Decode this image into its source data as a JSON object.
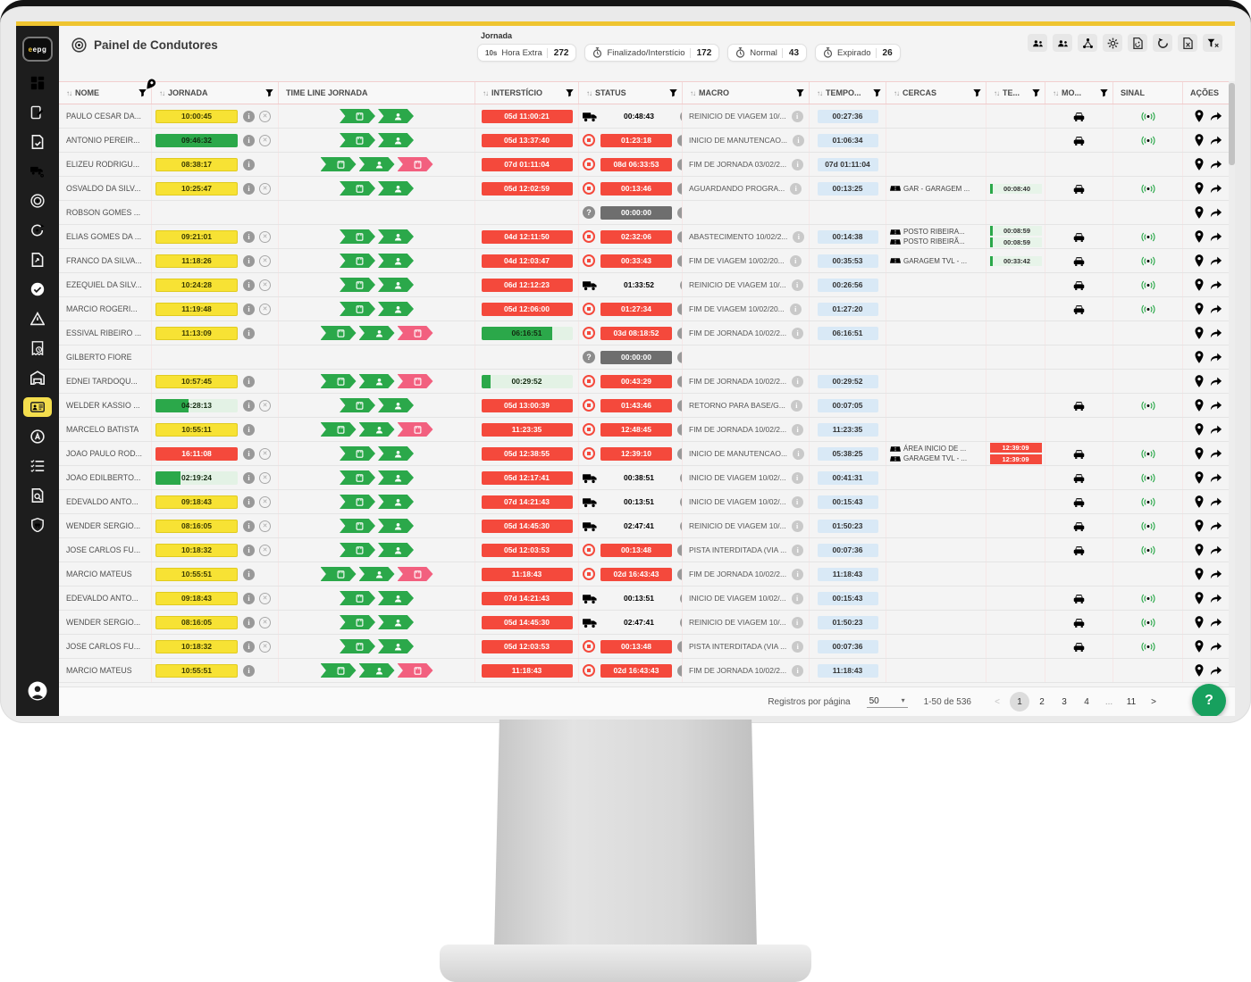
{
  "colors": {
    "accent_yellow": "#efc430",
    "green": "#2ba84a",
    "red": "#f4493c",
    "pink": "#f2607f",
    "light_blue": "#d9e9f6",
    "sidebar": "#1d1d1d",
    "fab_green": "#17a05e"
  },
  "sidebar": {
    "logo": "epg",
    "items": [
      "dashboard",
      "journal-edit",
      "document-check",
      "truck-location",
      "broadcast",
      "sync",
      "file-export",
      "check-circle",
      "alert-triangle",
      "invoice-clock",
      "warehouse",
      "driver-card",
      "autopilot",
      "checklist",
      "document-search",
      "shield-car"
    ],
    "active_item": "driver-card"
  },
  "header": {
    "title": "Painel de Condutores",
    "jornada_label": "Jornada",
    "chips": [
      {
        "icon_label": "10s",
        "label": "Hora Extra",
        "count": "272"
      },
      {
        "icon": "stopwatch",
        "label": "Finalizado/Interstício",
        "count": "172"
      },
      {
        "icon": "stopwatch",
        "label": "Normal",
        "count": "43"
      },
      {
        "icon": "stopwatch",
        "label": "Expirado",
        "count": "26"
      }
    ],
    "toolbar_icons": [
      "add-drivers",
      "drivers-group",
      "integrations",
      "settings",
      "document-sync",
      "refresh",
      "export-excel",
      "clear-filters"
    ]
  },
  "table": {
    "columns": [
      {
        "label": "NOME",
        "sort": true,
        "filter": true
      },
      {
        "label": "JORNADA",
        "sort": true,
        "filter": true
      },
      {
        "label": "TIME LINE JORNADA",
        "sort": false,
        "filter": false
      },
      {
        "label": "INTERSTÍCIO",
        "sort": true,
        "filter": true
      },
      {
        "label": "STATUS",
        "sort": true,
        "filter": true
      },
      {
        "label": "MACRO",
        "sort": true,
        "filter": true
      },
      {
        "label": "TEMPO...",
        "sort": true,
        "filter": true
      },
      {
        "label": "CERCAS",
        "sort": true,
        "filter": true
      },
      {
        "label": "TE...",
        "sort": true,
        "filter": true
      },
      {
        "label": "MO...",
        "sort": true,
        "filter": true
      },
      {
        "label": "SINAL",
        "sort": false,
        "filter": false
      },
      {
        "label": "AÇÕES",
        "sort": false,
        "filter": false
      }
    ],
    "rows": [
      {
        "n": "PAULO CESAR DA...",
        "j": {
          "v": "10:00:45",
          "s": "y"
        },
        "info": true,
        "cancel": true,
        "tl": [
          "trip",
          "driver"
        ],
        "it": {
          "v": "05d 11:00:21",
          "s": "r"
        },
        "st": {
          "ic": "truck",
          "v": "00:48:43",
          "s": "g"
        },
        "mc": "REINICIO DE VIAGEM 10/...",
        "tp": "00:27:36",
        "cc": [],
        "te": [],
        "mo": "g",
        "sg": true,
        "pin": "b"
      },
      {
        "n": "ANTONIO PEREIR...",
        "j": {
          "v": "09:46:32",
          "s": "gp",
          "f": 100
        },
        "info": true,
        "cancel": true,
        "tl": [
          "trip",
          "driver"
        ],
        "it": {
          "v": "05d 13:37:40",
          "s": "r"
        },
        "st": {
          "ic": "stop",
          "v": "01:23:18",
          "s": "r"
        },
        "mc": "INICIO DE MANUTENCAO...",
        "tp": "01:06:34",
        "cc": [],
        "te": [],
        "mo": "r",
        "sg": true,
        "pin": "b"
      },
      {
        "n": "ELIZEU RODRIGU...",
        "j": {
          "v": "08:38:17",
          "s": "y"
        },
        "info": true,
        "cancel": false,
        "tl": [
          "trip",
          "driver",
          "trip-pink"
        ],
        "it": {
          "v": "07d 01:11:04",
          "s": "r"
        },
        "st": {
          "ic": "stop",
          "v": "08d 06:33:53",
          "s": "r"
        },
        "mc": "FIM DE JORNADA 03/02/2...",
        "tp": "07d 01:11:04",
        "cc": [],
        "te": [],
        "mo": null,
        "sg": false,
        "pin": "g"
      },
      {
        "n": "OSVALDO DA SILV...",
        "j": {
          "v": "10:25:47",
          "s": "y"
        },
        "info": true,
        "cancel": true,
        "tl": [
          "trip",
          "driver"
        ],
        "it": {
          "v": "05d 12:02:59",
          "s": "r"
        },
        "st": {
          "ic": "stop",
          "v": "00:13:46",
          "s": "r"
        },
        "mc": "AGUARDANDO PROGRA...",
        "tp": "00:13:25",
        "cc": [
          {
            "t": "GAR - GARAGEM ..."
          }
        ],
        "te": [
          {
            "v": "00:08:40",
            "s": "g"
          }
        ],
        "mo": "r",
        "sg": true,
        "pin": "b"
      },
      {
        "n": "ROBSON GOMES ...",
        "j": null,
        "info": false,
        "cancel": false,
        "tl": [],
        "it": null,
        "st": {
          "ic": "q",
          "v": "00:00:00",
          "s": "d"
        },
        "mc": "",
        "tp": "",
        "cc": [],
        "te": [],
        "mo": null,
        "sg": false,
        "pin": "g"
      },
      {
        "n": "ELIAS GOMES DA ...",
        "j": {
          "v": "09:21:01",
          "s": "y"
        },
        "info": true,
        "cancel": true,
        "tl": [
          "trip",
          "driver"
        ],
        "it": {
          "v": "04d 12:11:50",
          "s": "r"
        },
        "st": {
          "ic": "stop",
          "v": "02:32:06",
          "s": "r"
        },
        "mc": "ABASTECIMENTO 10/02/2...",
        "tp": "00:14:38",
        "cc": [
          {
            "t": "POSTO RIBEIRA..."
          },
          {
            "t": "POSTO RIBEIRÃ..."
          }
        ],
        "te": [
          {
            "v": "00:08:59",
            "s": "g"
          },
          {
            "v": "00:08:59",
            "s": "g"
          }
        ],
        "mo": "r",
        "sg": true,
        "pin": "b"
      },
      {
        "n": "FRANCO DA SILVA...",
        "j": {
          "v": "11:18:26",
          "s": "y"
        },
        "info": true,
        "cancel": true,
        "tl": [
          "trip",
          "driver"
        ],
        "it": {
          "v": "04d 12:03:47",
          "s": "r"
        },
        "st": {
          "ic": "stop",
          "v": "00:33:43",
          "s": "r"
        },
        "mc": "FIM DE VIAGEM 10/02/20...",
        "tp": "00:35:53",
        "cc": [
          {
            "t": "GARAGEM TVL - ..."
          }
        ],
        "te": [
          {
            "v": "00:33:42",
            "s": "g"
          }
        ],
        "mo": "r",
        "sg": true,
        "pin": "b"
      },
      {
        "n": "EZEQUIEL DA SILV...",
        "j": {
          "v": "10:24:28",
          "s": "y"
        },
        "info": true,
        "cancel": true,
        "tl": [
          "trip",
          "driver"
        ],
        "it": {
          "v": "06d 12:12:23",
          "s": "r"
        },
        "st": {
          "ic": "truck",
          "v": "01:33:52",
          "s": "g"
        },
        "mc": "REINICIO DE VIAGEM 10/...",
        "tp": "00:26:56",
        "cc": [],
        "te": [],
        "mo": "g",
        "sg": true,
        "pin": "b"
      },
      {
        "n": "MARCIO ROGERI...",
        "j": {
          "v": "11:19:48",
          "s": "y"
        },
        "info": true,
        "cancel": true,
        "tl": [
          "trip",
          "driver"
        ],
        "it": {
          "v": "05d 12:06:00",
          "s": "r"
        },
        "st": {
          "ic": "stop",
          "v": "01:27:34",
          "s": "r"
        },
        "mc": "FIM DE VIAGEM 10/02/20...",
        "tp": "01:27:20",
        "cc": [],
        "te": [],
        "mo": "g",
        "sg": true,
        "pin": "b"
      },
      {
        "n": "ESSIVAL RIBEIRO ...",
        "j": {
          "v": "11:13:09",
          "s": "y"
        },
        "info": true,
        "cancel": false,
        "tl": [
          "trip",
          "driver",
          "trip-pink"
        ],
        "it": {
          "v": "06:16:51",
          "s": "gp",
          "f": 78
        },
        "st": {
          "ic": "stop",
          "v": "03d 08:18:52",
          "s": "r"
        },
        "mc": "FIM DE JORNADA 10/02/2...",
        "tp": "06:16:51",
        "cc": [],
        "te": [],
        "mo": null,
        "sg": false,
        "pin": "g"
      },
      {
        "n": "GILBERTO FIORE",
        "j": null,
        "info": false,
        "cancel": false,
        "tl": [],
        "it": null,
        "st": {
          "ic": "q",
          "v": "00:00:00",
          "s": "d"
        },
        "mc": "",
        "tp": "",
        "cc": [],
        "te": [],
        "mo": null,
        "sg": false,
        "pin": "g"
      },
      {
        "n": "EDNEI TARDOQU...",
        "j": {
          "v": "10:57:45",
          "s": "y"
        },
        "info": true,
        "cancel": false,
        "tl": [
          "trip",
          "driver",
          "trip-pink"
        ],
        "it": {
          "v": "00:29:52",
          "s": "gp",
          "f": 10
        },
        "st": {
          "ic": "stop",
          "v": "00:43:29",
          "s": "r"
        },
        "mc": "FIM DE JORNADA 10/02/2...",
        "tp": "00:29:52",
        "cc": [],
        "te": [],
        "mo": null,
        "sg": false,
        "pin": "g"
      },
      {
        "n": "WELDER KASSIO ...",
        "j": {
          "v": "04:28:13",
          "s": "gp",
          "f": 40
        },
        "info": true,
        "cancel": true,
        "tl": [
          "trip",
          "driver"
        ],
        "it": {
          "v": "05d 13:00:39",
          "s": "r"
        },
        "st": {
          "ic": "stop",
          "v": "01:43:46",
          "s": "r"
        },
        "mc": "RETORNO PARA BASE/G...",
        "tp": "00:07:05",
        "cc": [],
        "te": [],
        "mo": "g",
        "sg": true,
        "pin": "b"
      },
      {
        "n": "MARCELO BATISTA",
        "j": {
          "v": "10:55:11",
          "s": "y"
        },
        "info": true,
        "cancel": false,
        "tl": [
          "trip",
          "driver",
          "trip-pink"
        ],
        "it": {
          "v": "11:23:35",
          "s": "r"
        },
        "st": {
          "ic": "stop",
          "v": "12:48:45",
          "s": "r"
        },
        "mc": "FIM DE JORNADA 10/02/2...",
        "tp": "11:23:35",
        "cc": [],
        "te": [],
        "mo": null,
        "sg": false,
        "pin": "g"
      },
      {
        "n": "JOAO PAULO ROD...",
        "j": {
          "v": "16:11:08",
          "s": "r"
        },
        "info": true,
        "cancel": true,
        "tl": [
          "trip",
          "driver"
        ],
        "it": {
          "v": "05d 12:38:55",
          "s": "r"
        },
        "st": {
          "ic": "stop",
          "v": "12:39:10",
          "s": "r"
        },
        "mc": "INICIO DE MANUTENCAO...",
        "tp": "05:38:25",
        "cc": [
          {
            "t": "ÁREA INICIO DE ..."
          },
          {
            "t": "GARAGEM TVL - ..."
          }
        ],
        "te": [
          {
            "v": "12:39:09",
            "s": "r"
          },
          {
            "v": "12:39:09",
            "s": "r"
          }
        ],
        "mo": "r",
        "sg": true,
        "pin": "b"
      },
      {
        "n": "JOAO EDILBERTO...",
        "j": {
          "v": "02:19:24",
          "s": "gp",
          "f": 30
        },
        "info": true,
        "cancel": true,
        "tl": [
          "trip",
          "driver"
        ],
        "it": {
          "v": "05d 12:17:41",
          "s": "r"
        },
        "st": {
          "ic": "truck",
          "v": "00:38:51",
          "s": "g"
        },
        "mc": "INICIO DE VIAGEM 10/02/...",
        "tp": "00:41:31",
        "cc": [],
        "te": [],
        "mo": "g",
        "sg": true,
        "pin": "b"
      },
      {
        "n": "EDEVALDO ANTO...",
        "j": {
          "v": "09:18:43",
          "s": "y"
        },
        "info": true,
        "cancel": true,
        "tl": [
          "trip",
          "driver"
        ],
        "it": {
          "v": "07d 14:21:43",
          "s": "r"
        },
        "st": {
          "ic": "truck",
          "v": "00:13:51",
          "s": "g"
        },
        "mc": "INICIO DE VIAGEM 10/02/...",
        "tp": "00:15:43",
        "cc": [],
        "te": [],
        "mo": "g",
        "sg": true,
        "pin": "b"
      },
      {
        "n": "WENDER SERGIO...",
        "j": {
          "v": "08:16:05",
          "s": "y"
        },
        "info": true,
        "cancel": true,
        "tl": [
          "trip",
          "driver"
        ],
        "it": {
          "v": "05d 14:45:30",
          "s": "r"
        },
        "st": {
          "ic": "truck",
          "v": "02:47:41",
          "s": "g"
        },
        "mc": "REINICIO DE VIAGEM 10/...",
        "tp": "01:50:23",
        "cc": [],
        "te": [],
        "mo": "g",
        "sg": true,
        "pin": "b"
      },
      {
        "n": "JOSE CARLOS FU...",
        "j": {
          "v": "10:18:32",
          "s": "y"
        },
        "info": true,
        "cancel": true,
        "tl": [
          "trip",
          "driver"
        ],
        "it": {
          "v": "05d 12:03:53",
          "s": "r"
        },
        "st": {
          "ic": "stop",
          "v": "00:13:48",
          "s": "r"
        },
        "mc": "PISTA INTERDITADA (VIA ...",
        "tp": "00:07:36",
        "cc": [],
        "te": [],
        "mo": "r",
        "sg": true,
        "pin": "b"
      },
      {
        "n": "MARCIO MATEUS",
        "j": {
          "v": "10:55:51",
          "s": "y"
        },
        "info": true,
        "cancel": false,
        "tl": [
          "trip",
          "driver",
          "trip-pink"
        ],
        "it": {
          "v": "11:18:43",
          "s": "r"
        },
        "st": {
          "ic": "stop",
          "v": "02d 16:43:43",
          "s": "r"
        },
        "mc": "FIM DE JORNADA 10/02/2...",
        "tp": "11:18:43",
        "cc": [],
        "te": [],
        "mo": null,
        "sg": false,
        "pin": "g"
      },
      {
        "n": "EDEVALDO ANTO...",
        "j": {
          "v": "09:18:43",
          "s": "y"
        },
        "info": true,
        "cancel": true,
        "tl": [
          "trip",
          "driver"
        ],
        "it": {
          "v": "07d 14:21:43",
          "s": "r"
        },
        "st": {
          "ic": "truck",
          "v": "00:13:51",
          "s": "g"
        },
        "mc": "INICIO DE VIAGEM 10/02/...",
        "tp": "00:15:43",
        "cc": [],
        "te": [],
        "mo": "g",
        "sg": true,
        "pin": "b"
      },
      {
        "n": "WENDER SERGIO...",
        "j": {
          "v": "08:16:05",
          "s": "y"
        },
        "info": true,
        "cancel": true,
        "tl": [
          "trip",
          "driver"
        ],
        "it": {
          "v": "05d 14:45:30",
          "s": "r"
        },
        "st": {
          "ic": "truck",
          "v": "02:47:41",
          "s": "g"
        },
        "mc": "REINICIO DE VIAGEM 10/...",
        "tp": "01:50:23",
        "cc": [],
        "te": [],
        "mo": "g",
        "sg": true,
        "pin": "b"
      },
      {
        "n": "JOSE CARLOS FU...",
        "j": {
          "v": "10:18:32",
          "s": "y"
        },
        "info": true,
        "cancel": true,
        "tl": [
          "trip",
          "driver"
        ],
        "it": {
          "v": "05d 12:03:53",
          "s": "r"
        },
        "st": {
          "ic": "stop",
          "v": "00:13:48",
          "s": "r"
        },
        "mc": "PISTA INTERDITADA (VIA ...",
        "tp": "00:07:36",
        "cc": [],
        "te": [],
        "mo": "r",
        "sg": true,
        "pin": "b"
      },
      {
        "n": "MARCIO MATEUS",
        "j": {
          "v": "10:55:51",
          "s": "y"
        },
        "info": true,
        "cancel": false,
        "tl": [
          "trip",
          "driver",
          "trip-pink"
        ],
        "it": {
          "v": "11:18:43",
          "s": "r"
        },
        "st": {
          "ic": "stop",
          "v": "02d 16:43:43",
          "s": "r"
        },
        "mc": "FIM DE JORNADA 10/02/2...",
        "tp": "11:18:43",
        "cc": [],
        "te": [],
        "mo": null,
        "sg": false,
        "pin": "g"
      }
    ]
  },
  "footer": {
    "rows_per_page_label": "Registros por página",
    "rows_per_page_value": "50",
    "range_label": "1-50 de 536",
    "pages": [
      "1",
      "2",
      "3",
      "4",
      "...",
      "11"
    ],
    "active_page": "1",
    "prev_label": "<",
    "next_label": ">",
    "help_label": "?"
  }
}
